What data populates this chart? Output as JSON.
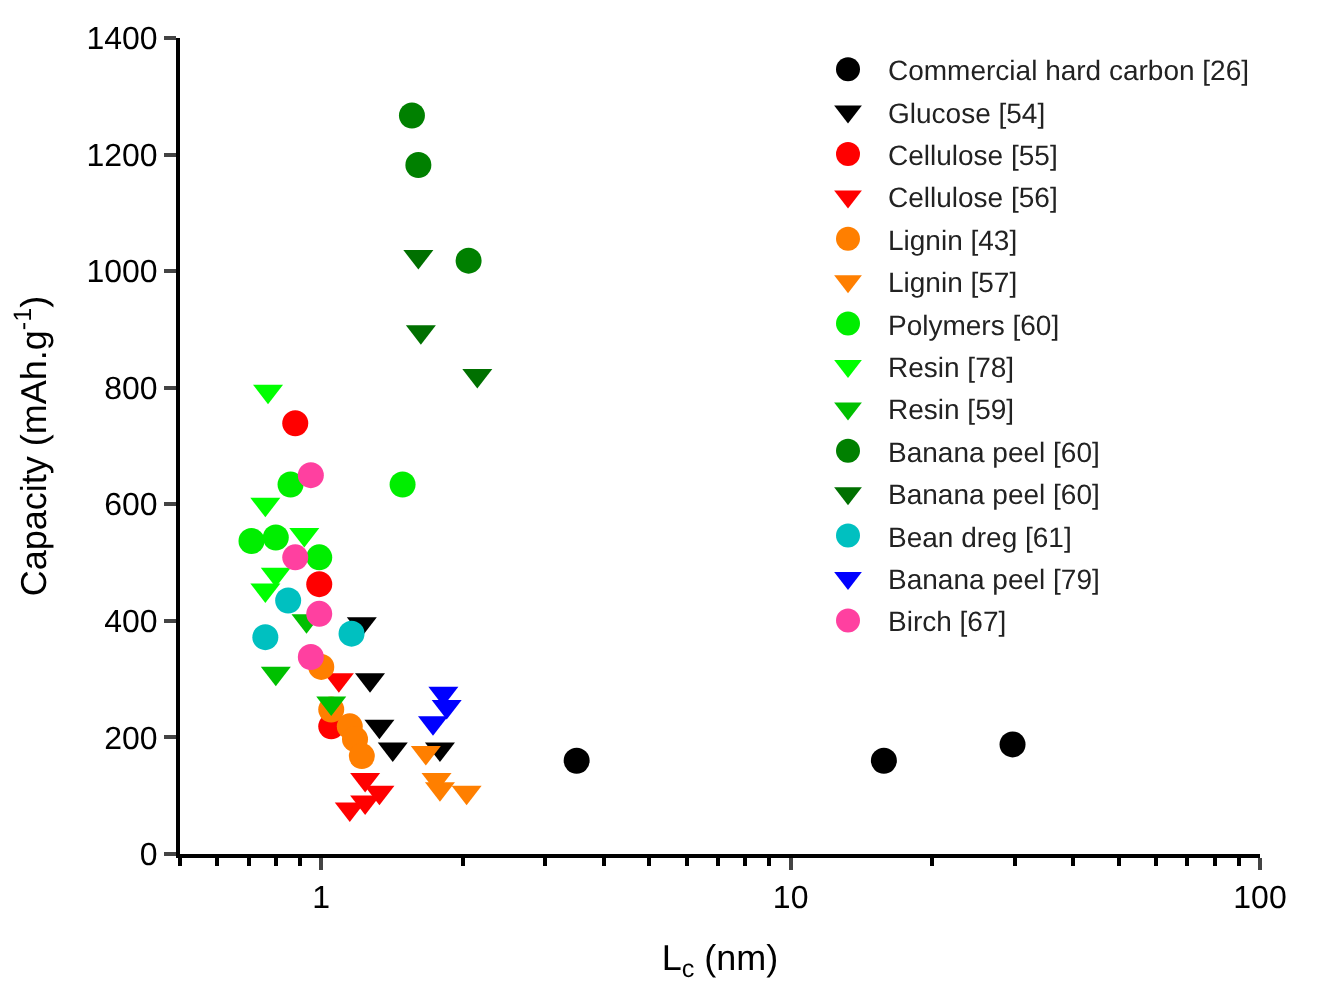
{
  "chart_data": {
    "type": "scatter",
    "xlabel": "L$_{c}$ (nm)",
    "ylabel": "Capacity (mAh.g$^{-1}$)",
    "log": "x",
    "xlim": [
      0.5,
      100
    ],
    "xticks": [
      1,
      10,
      100
    ],
    "ylim": [
      0,
      1400
    ],
    "yticks": [
      0,
      200,
      400,
      600,
      800,
      1000,
      1200,
      1400
    ],
    "legend": "top right",
    "series": [
      {
        "name": "Commercial hard carbon [26]",
        "color": "#000000",
        "marker": "circle",
        "x": [
          3.5,
          15.8,
          29.7
        ],
        "values": [
          160,
          160,
          188
        ]
      },
      {
        "name": "Glucose [54]",
        "color": "#000000",
        "marker": "triangle",
        "x": [
          1.22,
          1.27,
          1.33,
          1.42,
          1.79
        ],
        "values": [
          395,
          299,
          219,
          180,
          180
        ]
      },
      {
        "name": "Cellulose [55]",
        "color": "#ff0000",
        "marker": "circle",
        "x": [
          0.88,
          0.99,
          1.05
        ],
        "values": [
          739,
          463,
          219
        ]
      },
      {
        "name": "Cellulose [56]",
        "color": "#ff0000",
        "marker": "triangle",
        "x": [
          1.09,
          1.24,
          1.33,
          1.15,
          1.24
        ],
        "values": [
          299,
          128,
          106,
          77,
          89
        ]
      },
      {
        "name": "Lignin [43]",
        "color": "#ff7f00",
        "marker": "circle",
        "x": [
          1.0,
          1.05,
          1.15,
          1.18,
          1.22
        ],
        "values": [
          321,
          248,
          219,
          197,
          168
        ]
      },
      {
        "name": "Lignin [57]",
        "color": "#ff7f00",
        "marker": "triangle",
        "x": [
          1.67,
          1.76,
          1.79,
          2.04
        ],
        "values": [
          174,
          128,
          112,
          106
        ]
      },
      {
        "name": "Polymers [60]",
        "color": "#00ee00",
        "marker": "circle",
        "x": [
          0.71,
          0.8,
          0.99,
          0.86,
          1.49
        ],
        "values": [
          537,
          543,
          509,
          634,
          634
        ]
      },
      {
        "name": "Resin [78]",
        "color": "#00ff00",
        "marker": "triangle",
        "x": [
          0.77,
          0.76,
          0.8,
          0.76,
          0.92
        ],
        "values": [
          794,
          600,
          480,
          453,
          548
        ]
      },
      {
        "name": "Resin [59]",
        "color": "#00c000",
        "marker": "triangle",
        "x": [
          0.8,
          1.05,
          0.93
        ],
        "values": [
          310,
          259,
          400
        ]
      },
      {
        "name": "Banana peel [60]",
        "color": "#008000",
        "marker": "circle",
        "x": [
          1.56,
          1.61,
          2.06
        ],
        "values": [
          1267,
          1182,
          1018
        ]
      },
      {
        "name": "Banana peel [60]",
        "color": "#007000",
        "marker": "triangle",
        "x": [
          1.61,
          1.63,
          2.15
        ],
        "values": [
          1025,
          896,
          821
        ]
      },
      {
        "name": "Bean dreg [61]",
        "color": "#00c0c0",
        "marker": "circle",
        "x": [
          0.85,
          0.76,
          1.16
        ],
        "values": [
          435,
          372,
          378
        ]
      },
      {
        "name": "Banana peel [79]",
        "color": "#0000ff",
        "marker": "triangle",
        "x": [
          1.82,
          1.85,
          1.73
        ],
        "values": [
          276,
          253,
          225
        ]
      },
      {
        "name": "Birch [67]",
        "color": "#ff40a0",
        "marker": "circle",
        "x": [
          0.88,
          0.99,
          0.95,
          0.95
        ],
        "values": [
          509,
          412,
          338,
          650
        ]
      }
    ]
  }
}
